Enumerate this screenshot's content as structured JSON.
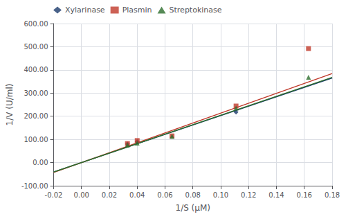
{
  "chart_data": {
    "type": "scatter",
    "xlabel": "1/S (μM)",
    "ylabel": "1/V (U/ml)",
    "xlim": [
      -0.02,
      0.18
    ],
    "ylim": [
      -100.0,
      600.0
    ],
    "xticks": [
      {
        "value": -0.02,
        "label": "-0.02"
      },
      {
        "value": 0.0,
        "label": "0.00"
      },
      {
        "value": 0.02,
        "label": "0.02"
      },
      {
        "value": 0.04,
        "label": "0.04"
      },
      {
        "value": 0.06,
        "label": "0.06"
      },
      {
        "value": 0.08,
        "label": "0.08"
      },
      {
        "value": 0.1,
        "label": "0.10"
      },
      {
        "value": 0.12,
        "label": "0.12"
      },
      {
        "value": 0.14,
        "label": "0.14"
      },
      {
        "value": 0.16,
        "label": "0.16"
      },
      {
        "value": 0.18,
        "label": "0.18"
      }
    ],
    "yticks": [
      {
        "value": -100,
        "label": "-100.00"
      },
      {
        "value": 0,
        "label": "0.00"
      },
      {
        "value": 100,
        "label": "100.00"
      },
      {
        "value": 200,
        "label": "200.00"
      },
      {
        "value": 300,
        "label": "300.00"
      },
      {
        "value": 400,
        "label": "400.00"
      },
      {
        "value": 500,
        "label": "500.00"
      },
      {
        "value": 600,
        "label": "600.00"
      }
    ],
    "grid": true,
    "legend": "upper left",
    "series": [
      {
        "name": "Xylarinase",
        "color": "#1a3a6b",
        "marker": "diamond",
        "x": [
          0.033,
          0.04,
          0.111
        ],
        "values": [
          80.0,
          90.0,
          218.0
        ],
        "fit": {
          "x": [
            -0.02,
            0.18
          ],
          "values": [
            -40.557,
            365.0127
          ]
        }
      },
      {
        "name": "Plasmin",
        "color": "#c0392b",
        "marker": "square",
        "x": [
          0.033,
          0.04,
          0.065,
          0.111,
          0.163
        ],
        "values": [
          82.0,
          95.0,
          115.0,
          244.0,
          492.0
        ],
        "fit": {
          "x": [
            -0.02,
            0.18
          ],
          "values": [
            -42.6982,
            384.2839
          ]
        }
      },
      {
        "name": "Streptokinase",
        "color": "#2d6e2d",
        "marker": "triangle",
        "x": [
          0.033,
          0.04,
          0.065,
          0.111,
          0.163
        ],
        "values": [
          76.0,
          84.0,
          113.0,
          235.0,
          368.0
        ],
        "fit": {
          "x": [
            -0.02,
            0.18
          ],
          "values": [
            -40.8609,
            367.7484
          ]
        }
      }
    ]
  }
}
